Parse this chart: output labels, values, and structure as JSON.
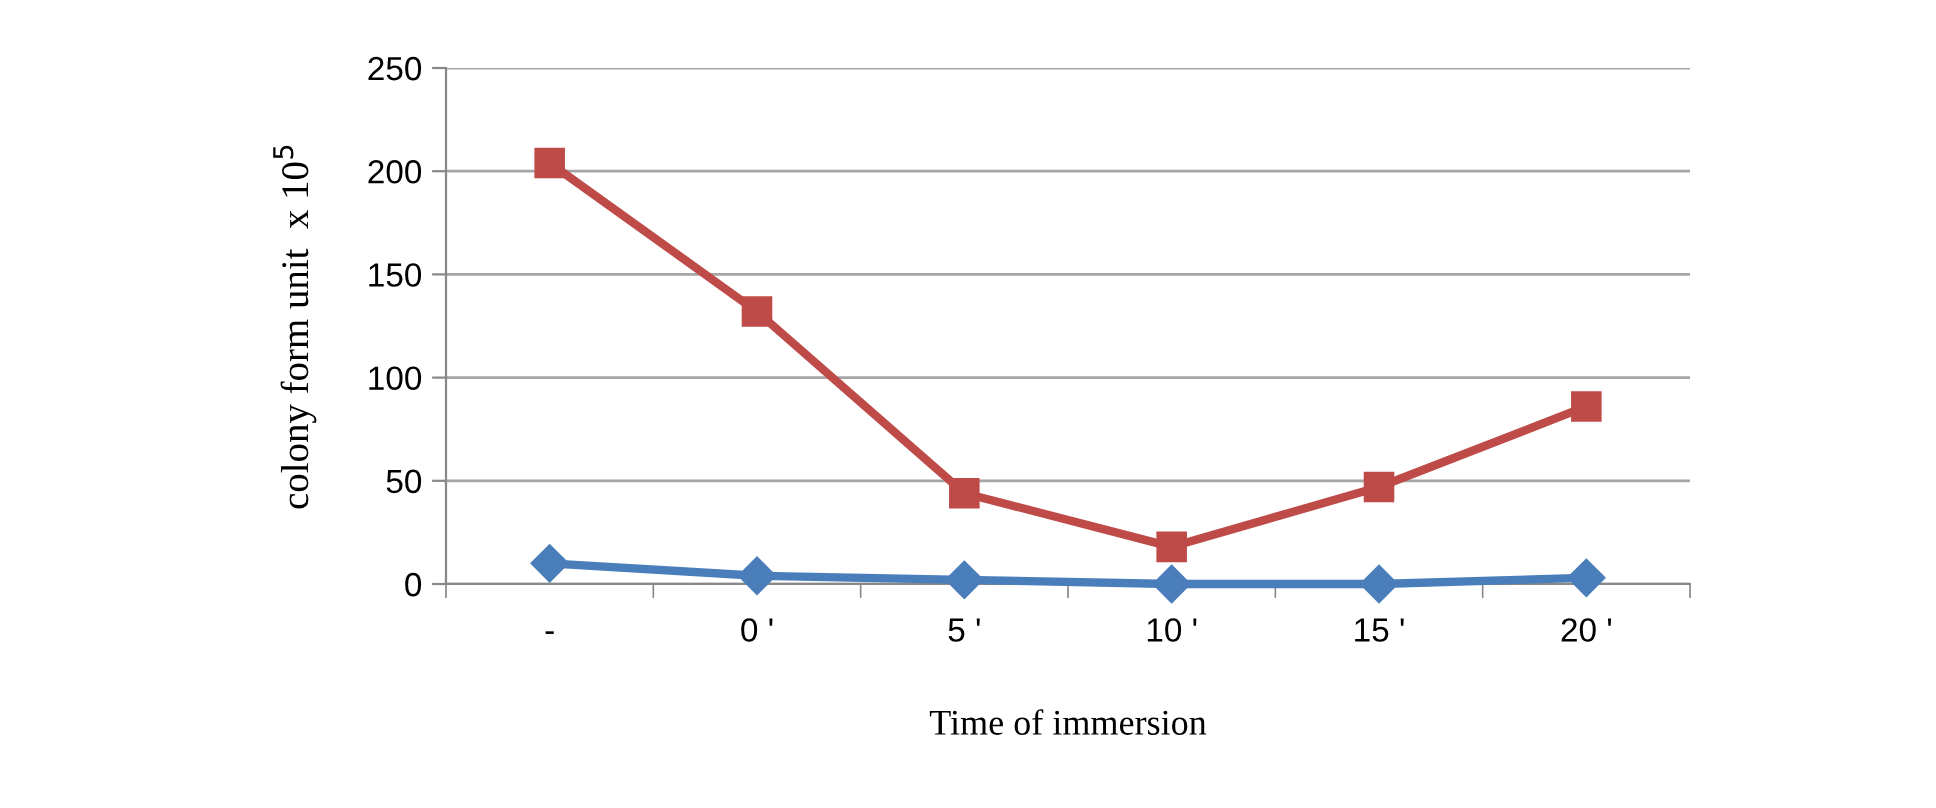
{
  "chart_data": {
    "type": "line",
    "xlabel": "Time of immersion",
    "ylabel": "colony form unit  x 10$^{5}$",
    "categories": [
      "-",
      "0 '",
      "5 '",
      "10 '",
      "15 '",
      "20 '"
    ],
    "series": [
      {
        "color": "#4a7ebb",
        "marker": "diamond",
        "values": [
          10,
          4,
          2,
          0,
          0,
          3
        ]
      },
      {
        "color": "#be4b48",
        "marker": "square",
        "values": [
          204,
          132,
          44,
          18,
          47,
          86
        ]
      }
    ],
    "ylim": [
      0,
      250
    ],
    "yticks": [
      0,
      50,
      100,
      150,
      200,
      250
    ],
    "grid": "y",
    "line_style": "solid"
  }
}
